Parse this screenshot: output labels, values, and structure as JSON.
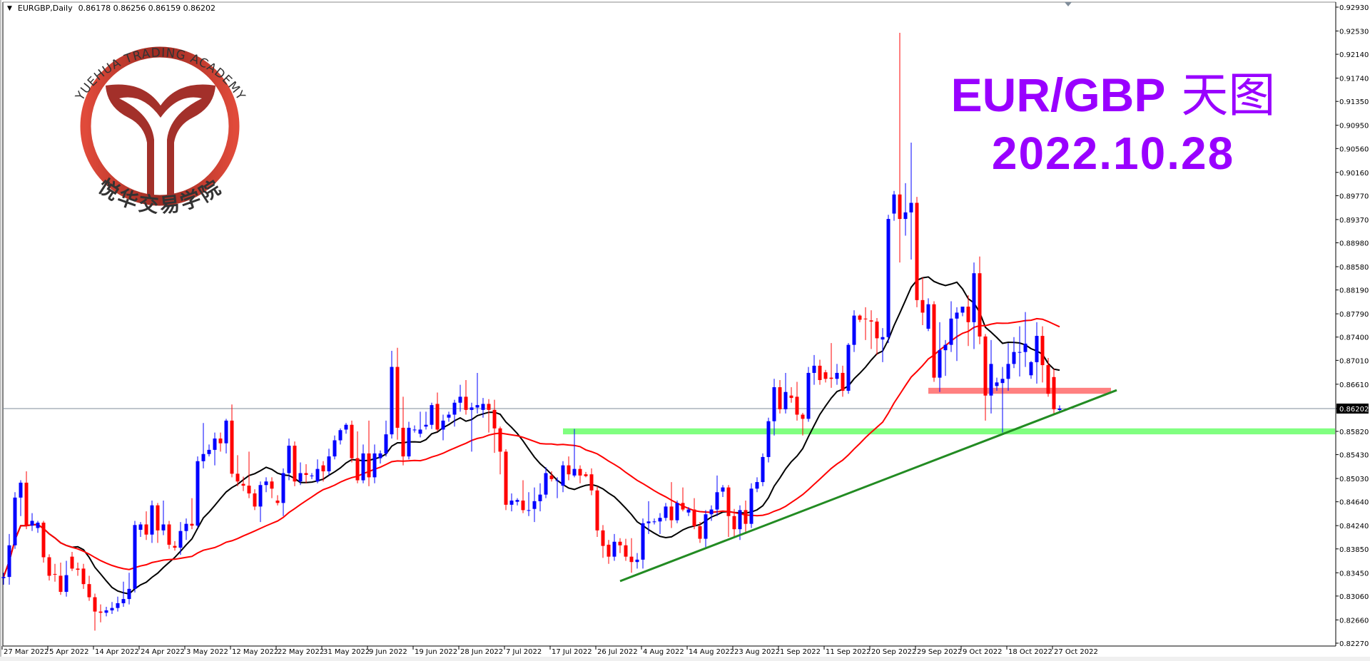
{
  "header": {
    "symbol": "EURGBP,Daily",
    "ohlc": "0.86178 0.86256 0.86159 0.86202"
  },
  "overlay_title": {
    "line1": "EUR/GBP",
    "line1_cn": "天图",
    "line2": "2022.10.28",
    "color": "#9900ff"
  },
  "logo": {
    "arc_text": "YUEHUA TRADING ACADEMY",
    "cn_text": "悦华交易学院",
    "color": "#c0392b"
  },
  "chart_data": {
    "type": "candlestick",
    "symbol": "EURGBP",
    "timeframe": "Daily",
    "bull_color": "#0000ff",
    "bear_color": "#ff0000",
    "ylim": [
      0.8227,
      0.9293
    ],
    "first_date": "27 Mar 2022",
    "last_price": "0.86202",
    "y_ticks": [
      "0.92930",
      "0.92530",
      "0.92140",
      "0.91740",
      "0.91350",
      "0.90950",
      "0.90560",
      "0.90160",
      "0.89770",
      "0.89370",
      "0.88980",
      "0.88580",
      "0.88190",
      "0.87790",
      "0.87400",
      "0.87010",
      "0.86610",
      "0.86202",
      "0.85820",
      "0.85430",
      "0.85030",
      "0.84640",
      "0.84240",
      "0.83850",
      "0.83450",
      "0.83060",
      "0.82660",
      "0.82270"
    ],
    "x_ticks": [
      "27 Mar 2022",
      "5 Apr 2022",
      "14 Apr 2022",
      "24 Apr 2022",
      "3 May 2022",
      "12 May 2022",
      "22 May 2022",
      "31 May 2022",
      "9 Jun 2022",
      "19 Jun 2022",
      "28 Jun 2022",
      "7 Jul 2022",
      "17 Jul 2022",
      "26 Jul 2022",
      "4 Aug 2022",
      "14 Aug 2022",
      "23 Aug 2022",
      "1 Sep 2022",
      "11 Sep 2022",
      "20 Sep 2022",
      "29 Sep 2022",
      "9 Oct 2022",
      "18 Oct 2022",
      "27 Oct 2022"
    ],
    "x_tick_every_bars": 8,
    "indicators": [
      {
        "type": "ma",
        "period": 13,
        "color": "#000000"
      },
      {
        "type": "ma",
        "period": 34,
        "color": "#ff0000"
      }
    ],
    "annotations": {
      "resistance_zone": {
        "from": "2 Oct 2022",
        "to": "8 Nov 2022",
        "price": [
          0.8645,
          0.8655
        ],
        "color": "#ff8080"
      },
      "support_zone": {
        "from": "19 Jul 2022",
        "to": "right-edge",
        "price": [
          0.8577,
          0.8587
        ],
        "color": "#80ff80"
      },
      "trendline": {
        "from": [
          "31 Jul 2022",
          0.8331
        ],
        "to": [
          "9 Nov 2022",
          0.8651
        ],
        "color": "#228b22"
      }
    },
    "ohlc": [
      [
        0.8336,
        0.8345,
        0.8325,
        0.8338
      ],
      [
        0.8338,
        0.841,
        0.8325,
        0.8391
      ],
      [
        0.8391,
        0.848,
        0.8385,
        0.8471
      ],
      [
        0.8471,
        0.85,
        0.844,
        0.8496
      ],
      [
        0.8496,
        0.8515,
        0.8418,
        0.8424
      ],
      [
        0.8424,
        0.8445,
        0.8415,
        0.8432
      ],
      [
        0.842,
        0.8432,
        0.8412,
        0.8429
      ],
      [
        0.8429,
        0.8432,
        0.8362,
        0.8371
      ],
      [
        0.8371,
        0.8376,
        0.8332,
        0.834
      ],
      [
        0.8343,
        0.836,
        0.833,
        0.8342
      ],
      [
        0.834,
        0.8362,
        0.8308,
        0.8313
      ],
      [
        0.8313,
        0.8365,
        0.8305,
        0.8341
      ],
      [
        0.8372,
        0.838,
        0.8348,
        0.8352
      ],
      [
        0.8352,
        0.8362,
        0.834,
        0.835
      ],
      [
        0.8352,
        0.836,
        0.8318,
        0.8326
      ],
      [
        0.8326,
        0.834,
        0.8298,
        0.8304
      ],
      [
        0.8304,
        0.831,
        0.8248,
        0.828
      ],
      [
        0.828,
        0.8292,
        0.8262,
        0.8278
      ],
      [
        0.8278,
        0.8288,
        0.8272,
        0.8282
      ],
      [
        0.8282,
        0.8296,
        0.8276,
        0.8286
      ],
      [
        0.8286,
        0.8305,
        0.828,
        0.8294
      ],
      [
        0.8294,
        0.833,
        0.8288,
        0.8301
      ],
      [
        0.8301,
        0.8345,
        0.8292,
        0.8318
      ],
      [
        0.8318,
        0.8432,
        0.8312,
        0.8425
      ],
      [
        0.8417,
        0.843,
        0.8405,
        0.8426
      ],
      [
        0.8426,
        0.8448,
        0.84,
        0.8409
      ],
      [
        0.8409,
        0.8466,
        0.8395,
        0.8458
      ],
      [
        0.8458,
        0.8462,
        0.8395,
        0.8416
      ],
      [
        0.8416,
        0.8466,
        0.8408,
        0.8426
      ],
      [
        0.8426,
        0.8432,
        0.8385,
        0.8392
      ],
      [
        0.839,
        0.8398,
        0.8382,
        0.8387
      ],
      [
        0.8387,
        0.843,
        0.8375,
        0.8415
      ],
      [
        0.8415,
        0.8436,
        0.84,
        0.8427
      ],
      [
        0.8427,
        0.847,
        0.8418,
        0.8424
      ],
      [
        0.8424,
        0.854,
        0.842,
        0.8532
      ],
      [
        0.8532,
        0.8596,
        0.852,
        0.8544
      ],
      [
        0.8544,
        0.856,
        0.854,
        0.8551
      ],
      [
        0.8551,
        0.858,
        0.8525,
        0.857
      ],
      [
        0.857,
        0.858,
        0.8548,
        0.8562
      ],
      [
        0.8562,
        0.8603,
        0.8545,
        0.86
      ],
      [
        0.86,
        0.8627,
        0.8505,
        0.8511
      ],
      [
        0.8511,
        0.8542,
        0.849,
        0.8498
      ],
      [
        0.8494,
        0.8506,
        0.8482,
        0.8491
      ],
      [
        0.8491,
        0.8548,
        0.847,
        0.8478
      ],
      [
        0.8478,
        0.8485,
        0.845,
        0.8456
      ],
      [
        0.8456,
        0.8498,
        0.843,
        0.8492
      ],
      [
        0.8492,
        0.8505,
        0.848,
        0.8498
      ],
      [
        0.8498,
        0.8505,
        0.847,
        0.8486
      ],
      [
        0.8466,
        0.8475,
        0.8458,
        0.8462
      ],
      [
        0.8462,
        0.852,
        0.844,
        0.8512
      ],
      [
        0.8512,
        0.857,
        0.85,
        0.8558
      ],
      [
        0.8558,
        0.8565,
        0.849,
        0.8498
      ],
      [
        0.8498,
        0.853,
        0.8492,
        0.8512
      ],
      [
        0.8512,
        0.8527,
        0.8495,
        0.8509
      ],
      [
        0.8508,
        0.8512,
        0.8502,
        0.8508
      ],
      [
        0.8498,
        0.8535,
        0.8495,
        0.8519
      ],
      [
        0.8525,
        0.8532,
        0.8498,
        0.8515
      ],
      [
        0.8515,
        0.8553,
        0.8508,
        0.854
      ],
      [
        0.854,
        0.8575,
        0.8535,
        0.8567
      ],
      [
        0.8567,
        0.8587,
        0.856,
        0.8584
      ],
      [
        0.8585,
        0.8596,
        0.8578,
        0.8593
      ],
      [
        0.8593,
        0.86,
        0.853,
        0.8537
      ],
      [
        0.8537,
        0.8582,
        0.8495,
        0.85
      ],
      [
        0.85,
        0.856,
        0.8495,
        0.8545
      ],
      [
        0.8545,
        0.86,
        0.849,
        0.8505
      ],
      [
        0.8505,
        0.856,
        0.8495,
        0.8545
      ],
      [
        0.8537,
        0.855,
        0.8528,
        0.8545
      ],
      [
        0.8545,
        0.86,
        0.854,
        0.8577
      ],
      [
        0.8577,
        0.8717,
        0.857,
        0.869
      ],
      [
        0.869,
        0.8722,
        0.8568,
        0.8588
      ],
      [
        0.8588,
        0.864,
        0.8525,
        0.854
      ],
      [
        0.854,
        0.8598,
        0.8535,
        0.8588
      ],
      [
        0.8585,
        0.8592,
        0.858,
        0.8585
      ],
      [
        0.8578,
        0.8615,
        0.8572,
        0.8585
      ],
      [
        0.859,
        0.8615,
        0.8585,
        0.8593
      ],
      [
        0.8593,
        0.863,
        0.8586,
        0.8626
      ],
      [
        0.8628,
        0.8647,
        0.8582,
        0.8585
      ],
      [
        0.8585,
        0.861,
        0.8567,
        0.86
      ],
      [
        0.8605,
        0.8615,
        0.8598,
        0.861
      ],
      [
        0.861,
        0.8635,
        0.859,
        0.863
      ],
      [
        0.863,
        0.866,
        0.8615,
        0.864
      ],
      [
        0.864,
        0.8668,
        0.861,
        0.8618
      ],
      [
        0.8618,
        0.863,
        0.8548,
        0.8622
      ],
      [
        0.8622,
        0.868,
        0.8612,
        0.8626
      ],
      [
        0.8618,
        0.8638,
        0.8605,
        0.8628
      ],
      [
        0.8628,
        0.8636,
        0.858,
        0.8618
      ],
      [
        0.8618,
        0.8635,
        0.8546,
        0.8587
      ],
      [
        0.8587,
        0.859,
        0.851,
        0.8548
      ],
      [
        0.8548,
        0.8552,
        0.845,
        0.8459
      ],
      [
        0.8459,
        0.8478,
        0.8448,
        0.8466
      ],
      [
        0.8464,
        0.847,
        0.8458,
        0.8467
      ],
      [
        0.8466,
        0.85,
        0.8445,
        0.845
      ],
      [
        0.845,
        0.848,
        0.844,
        0.845
      ],
      [
        0.8452,
        0.8488,
        0.843,
        0.8465
      ],
      [
        0.8465,
        0.8495,
        0.8448,
        0.8476
      ],
      [
        0.8476,
        0.8522,
        0.847,
        0.8512
      ],
      [
        0.8508,
        0.8515,
        0.8498,
        0.8502
      ],
      [
        0.85,
        0.8505,
        0.847,
        0.85
      ],
      [
        0.8491,
        0.8532,
        0.848,
        0.8525
      ],
      [
        0.8525,
        0.854,
        0.85,
        0.851
      ],
      [
        0.8508,
        0.8586,
        0.8505,
        0.8519
      ],
      [
        0.8519,
        0.8525,
        0.8495,
        0.8508
      ],
      [
        0.851,
        0.8514,
        0.8505,
        0.8507
      ],
      [
        0.851,
        0.852,
        0.8475,
        0.8483
      ],
      [
        0.8483,
        0.849,
        0.8405,
        0.8416
      ],
      [
        0.8416,
        0.8425,
        0.837,
        0.839
      ],
      [
        0.8392,
        0.84,
        0.836,
        0.8372
      ],
      [
        0.8372,
        0.841,
        0.8365,
        0.8397
      ],
      [
        0.8397,
        0.8403,
        0.8378,
        0.8391
      ],
      [
        0.8391,
        0.8402,
        0.8365,
        0.8372
      ],
      [
        0.8372,
        0.8403,
        0.8345,
        0.8363
      ],
      [
        0.8363,
        0.8378,
        0.8352,
        0.8367
      ],
      [
        0.8367,
        0.8436,
        0.8352,
        0.8428
      ],
      [
        0.8428,
        0.8465,
        0.841,
        0.8431
      ],
      [
        0.8431,
        0.8436,
        0.8426,
        0.8431
      ],
      [
        0.8431,
        0.8445,
        0.841,
        0.8437
      ],
      [
        0.8437,
        0.8462,
        0.8432,
        0.8456
      ],
      [
        0.8456,
        0.8497,
        0.842,
        0.8433
      ],
      [
        0.8433,
        0.8466,
        0.8428,
        0.8462
      ],
      [
        0.8462,
        0.8488,
        0.8448,
        0.8451
      ],
      [
        0.8446,
        0.8455,
        0.844,
        0.8451
      ],
      [
        0.8451,
        0.847,
        0.8418,
        0.8423
      ],
      [
        0.8423,
        0.843,
        0.8395,
        0.8402
      ],
      [
        0.8402,
        0.845,
        0.8388,
        0.8443
      ],
      [
        0.8443,
        0.8458,
        0.8432,
        0.8451
      ],
      [
        0.8451,
        0.8508,
        0.844,
        0.848
      ],
      [
        0.8481,
        0.8492,
        0.8472,
        0.8488
      ],
      [
        0.8488,
        0.8492,
        0.8405,
        0.844
      ],
      [
        0.844,
        0.8452,
        0.8405,
        0.8418
      ],
      [
        0.8418,
        0.8458,
        0.84,
        0.845
      ],
      [
        0.845,
        0.8466,
        0.841,
        0.8427
      ],
      [
        0.8427,
        0.8495,
        0.842,
        0.8486
      ],
      [
        0.8486,
        0.8505,
        0.848,
        0.8497
      ],
      [
        0.8497,
        0.8545,
        0.849,
        0.8539
      ],
      [
        0.8539,
        0.8605,
        0.853,
        0.8599
      ],
      [
        0.8599,
        0.867,
        0.8575,
        0.8656
      ],
      [
        0.8656,
        0.8668,
        0.8612,
        0.8619
      ],
      [
        0.8619,
        0.868,
        0.8612,
        0.8648
      ],
      [
        0.8642,
        0.8656,
        0.863,
        0.8638
      ],
      [
        0.864,
        0.8665,
        0.86,
        0.861
      ],
      [
        0.861,
        0.8613,
        0.8575,
        0.8603
      ],
      [
        0.8603,
        0.869,
        0.8598,
        0.868
      ],
      [
        0.868,
        0.871,
        0.866,
        0.8692
      ],
      [
        0.8692,
        0.8702,
        0.866,
        0.8668
      ],
      [
        0.8681,
        0.8685,
        0.8664,
        0.867
      ],
      [
        0.8672,
        0.873,
        0.8655,
        0.867
      ],
      [
        0.867,
        0.8695,
        0.866,
        0.868
      ],
      [
        0.868,
        0.8692,
        0.864,
        0.865
      ],
      [
        0.865,
        0.873,
        0.8645,
        0.8727
      ],
      [
        0.8727,
        0.8785,
        0.8715,
        0.8776
      ],
      [
        0.8776,
        0.8778,
        0.8765,
        0.8769
      ],
      [
        0.8771,
        0.879,
        0.8735,
        0.877
      ],
      [
        0.8768,
        0.8785,
        0.872,
        0.8766
      ],
      [
        0.8766,
        0.8772,
        0.871,
        0.8738
      ],
      [
        0.8736,
        0.8755,
        0.8698,
        0.874
      ],
      [
        0.874,
        0.8945,
        0.873,
        0.8938
      ],
      [
        0.8947,
        0.8985,
        0.8935,
        0.8979
      ],
      [
        0.8979,
        0.925,
        0.8865,
        0.8938
      ],
      [
        0.8938,
        0.8998,
        0.891,
        0.8949
      ],
      [
        0.8949,
        0.9066,
        0.887,
        0.8965
      ],
      [
        0.8965,
        0.8975,
        0.879,
        0.8802
      ],
      [
        0.8802,
        0.884,
        0.876,
        0.8781
      ],
      [
        0.8754,
        0.8805,
        0.875,
        0.8795
      ],
      [
        0.8795,
        0.88,
        0.8665,
        0.8672
      ],
      [
        0.8672,
        0.8765,
        0.8648,
        0.8718
      ],
      [
        0.8718,
        0.8735,
        0.8675,
        0.8727
      ],
      [
        0.8727,
        0.88,
        0.8715,
        0.8771
      ],
      [
        0.8771,
        0.879,
        0.87,
        0.8781
      ],
      [
        0.8781,
        0.879,
        0.8775,
        0.8791
      ],
      [
        0.8791,
        0.881,
        0.8725,
        0.8765
      ],
      [
        0.8765,
        0.8865,
        0.872,
        0.8847
      ],
      [
        0.8847,
        0.8875,
        0.8728,
        0.8741
      ],
      [
        0.8741,
        0.8745,
        0.86,
        0.8642
      ],
      [
        0.8642,
        0.8735,
        0.8612,
        0.8695
      ],
      [
        0.8658,
        0.8672,
        0.865,
        0.8664
      ],
      [
        0.8663,
        0.869,
        0.858,
        0.867
      ],
      [
        0.867,
        0.873,
        0.865,
        0.8695
      ],
      [
        0.8695,
        0.874,
        0.8688,
        0.8715
      ],
      [
        0.8715,
        0.8758,
        0.8674,
        0.8715
      ],
      [
        0.8715,
        0.8782,
        0.869,
        0.8729
      ],
      [
        0.8676,
        0.87,
        0.867,
        0.8698
      ],
      [
        0.8698,
        0.8765,
        0.8662,
        0.8742
      ],
      [
        0.8742,
        0.8758,
        0.8664,
        0.8693
      ],
      [
        0.8693,
        0.8705,
        0.864,
        0.8645
      ],
      [
        0.8673,
        0.8687,
        0.8612,
        0.8619
      ],
      [
        0.86178,
        0.86256,
        0.86159,
        0.86202
      ]
    ]
  }
}
